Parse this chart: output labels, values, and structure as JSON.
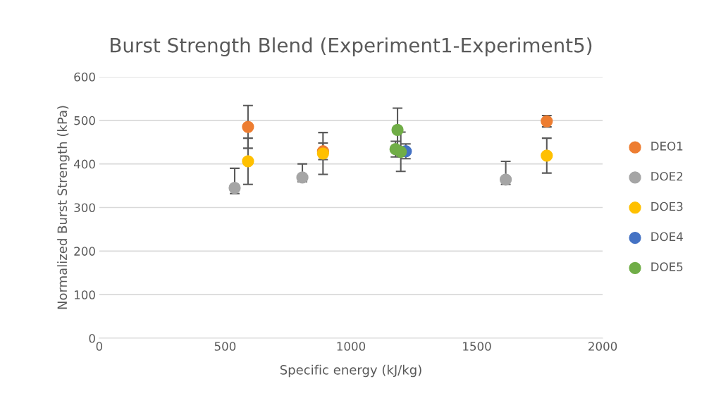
{
  "chart_data": {
    "type": "scatter",
    "title": "Burst Strength Blend (Experiment1-Experiment5)",
    "xlabel": "Specific energy (kJ/kg)",
    "ylabel": "Normalized Burst Strength (kPa)",
    "xlim": [
      0,
      2000
    ],
    "xticks": [
      0,
      500,
      1000,
      1500,
      2000
    ],
    "ylim": [
      0,
      600
    ],
    "yticks": [
      0,
      100,
      200,
      300,
      400,
      500,
      600
    ],
    "grid": "y",
    "legend": "right",
    "marker": "circle",
    "series": [
      {
        "name": "DEO1",
        "color": "#ed7d31",
        "x": [
          591,
          889,
          1778
        ],
        "values": [
          485,
          429,
          498
        ],
        "errors": [
          49,
          19,
          13
        ]
      },
      {
        "name": "DOE2",
        "color": "#a5a5a5",
        "x": [
          538,
          807,
          1615
        ],
        "values": [
          345,
          369,
          364
        ],
        "errors": [
          [
            332,
            390
          ],
          [
            359,
            400
          ],
          [
            353,
            406
          ]
        ]
      },
      {
        "name": "DOE3",
        "color": "#ffc000",
        "x": [
          591,
          889,
          1778
        ],
        "values": [
          406,
          424,
          419
        ],
        "errors": [
          53,
          48,
          40
        ]
      },
      {
        "name": "DOE4",
        "color": "#4472c4",
        "x": [
          1218
        ],
        "values": [
          429
        ],
        "errors": [
          17
        ]
      },
      {
        "name": "DOE5",
        "color": "#70ad47",
        "x": [
          1185,
          1177,
          1198
        ],
        "values": [
          478,
          434,
          428
        ],
        "errors": [
          50,
          18,
          45
        ]
      }
    ]
  }
}
